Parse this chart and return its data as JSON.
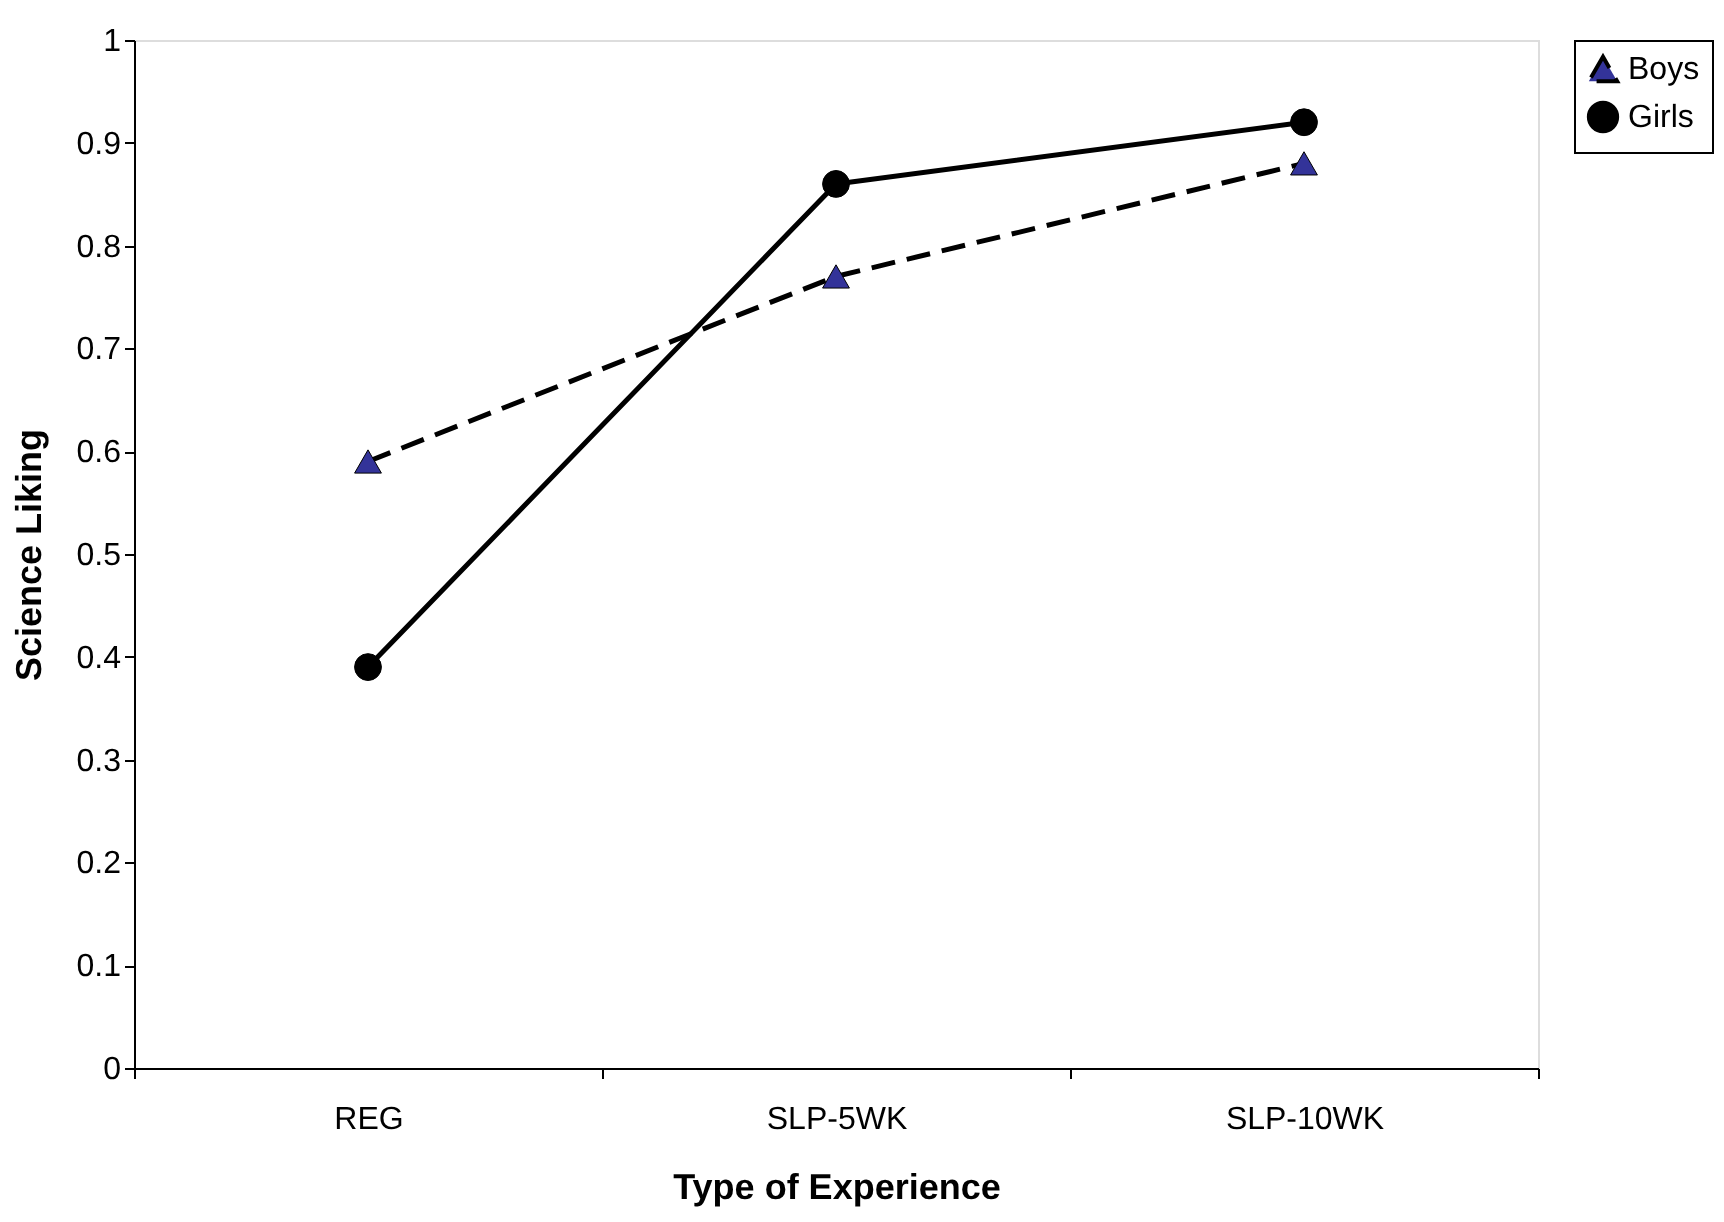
{
  "chart_data": {
    "type": "line",
    "xlabel": "Type of Experience",
    "ylabel": "Science Liking",
    "categories": [
      "REG",
      "SLP-5WK",
      "SLP-10WK"
    ],
    "series": [
      {
        "name": "Boys",
        "color": "#333399",
        "values": [
          0.59,
          0.77,
          0.88
        ],
        "marker": "triangle",
        "line_style": "dashed"
      },
      {
        "name": "Girls",
        "color": "#000000",
        "values": [
          0.39,
          0.86,
          0.92
        ],
        "marker": "circle",
        "line_style": "solid"
      }
    ],
    "ylim": [
      0,
      1
    ],
    "yticks": [
      0,
      0.1,
      0.2,
      0.3,
      0.4,
      0.5,
      0.6,
      0.7,
      0.8,
      0.9,
      1
    ],
    "grid": false,
    "legend": "right"
  }
}
